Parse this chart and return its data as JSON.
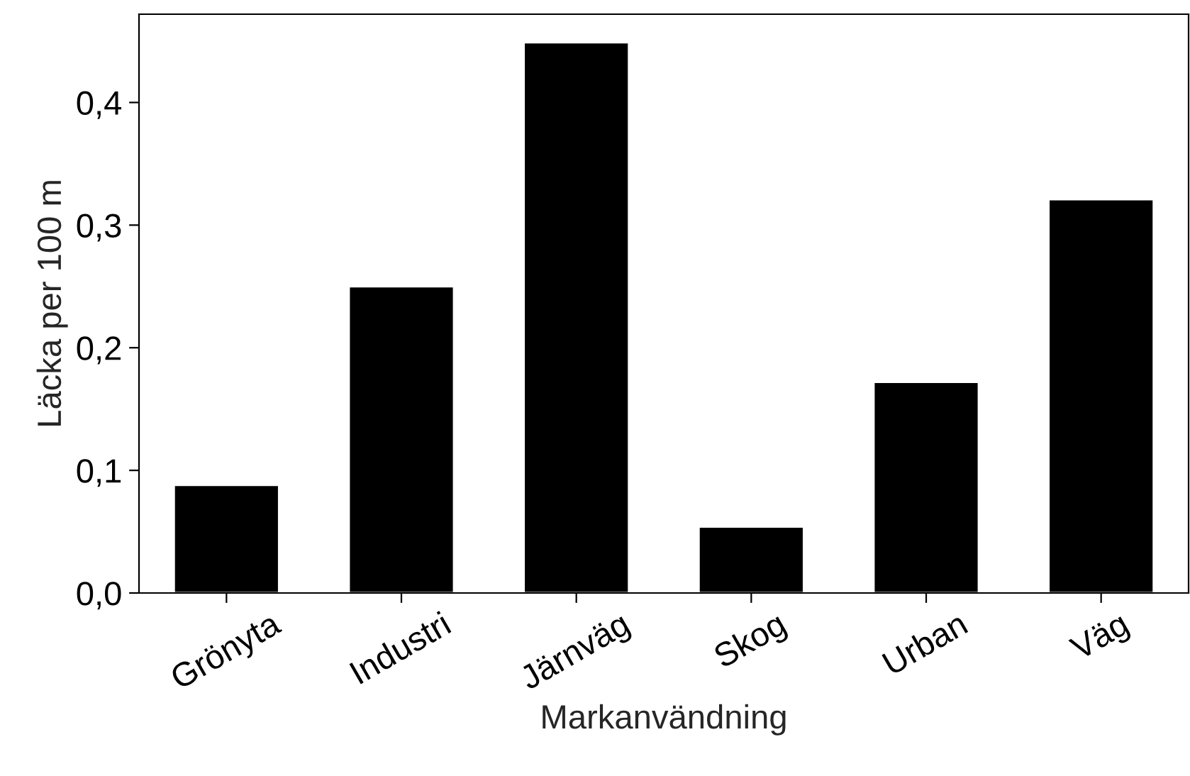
{
  "chart_data": {
    "type": "bar",
    "xlabel": "Markanvändning",
    "ylabel": "Läcka per 100 m",
    "categories": [
      "Grönyta",
      "Industri",
      "Järnväg",
      "Skog",
      "Urban",
      "Väg"
    ],
    "values": [
      0.088,
      0.25,
      0.449,
      0.054,
      0.172,
      0.321
    ],
    "color": "#000000",
    "ylim": [
      0,
      0.472
    ],
    "yticks": [
      {
        "value": 0.0,
        "label": "0,0"
      },
      {
        "value": 0.1,
        "label": "0,1"
      },
      {
        "value": 0.2,
        "label": "0,2"
      },
      {
        "value": 0.3,
        "label": "0,3"
      },
      {
        "value": 0.4,
        "label": "0,4"
      }
    ]
  }
}
